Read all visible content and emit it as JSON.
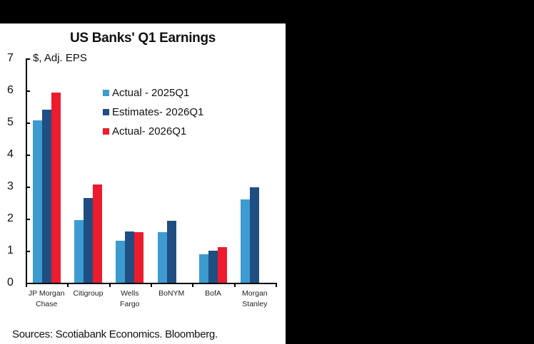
{
  "title": "US Banks' Q1 Earnings",
  "source": "Sources: Scotiabank Economics. Bloomberg.",
  "colors": {
    "actual_2025": "#3d9bd0",
    "estimates_2026": "#1f4e82",
    "actual_2026": "#ec1c2e"
  },
  "chart_data": {
    "type": "bar",
    "title": "US Banks' Q1 Earnings",
    "xlabel": "",
    "ylabel": "$, Adj. EPS",
    "ylim": [
      0,
      7
    ],
    "yticks": [
      "0",
      "1",
      "2",
      "3",
      "4",
      "5",
      "6",
      "7"
    ],
    "grid": false,
    "legend_position": "upper center (inside plot)",
    "categories": [
      "JP Morgan Chase",
      "Citigroup",
      "Wells Fargo",
      "BoNYM",
      "BofA",
      "Morgan Stanley"
    ],
    "category_labels": [
      "JP Morgan\nChase",
      "Citigroup",
      "Wells\nFargo",
      "BoNYM",
      "BofA",
      "Morgan\nStanley"
    ],
    "series": [
      {
        "name": "Actual - 2025Q1",
        "color": "#3d9bd0",
        "values": [
          5.07,
          1.96,
          1.31,
          1.58,
          0.9,
          2.6
        ]
      },
      {
        "name": "Estimates- 2026Q1",
        "color": "#1f4e82",
        "values": [
          5.4,
          2.65,
          1.6,
          1.93,
          1.0,
          2.98
        ]
      },
      {
        "name": "Actual- 2026Q1",
        "color": "#ec1c2e",
        "values": [
          5.94,
          3.06,
          1.57,
          null,
          1.11,
          null
        ]
      }
    ]
  }
}
